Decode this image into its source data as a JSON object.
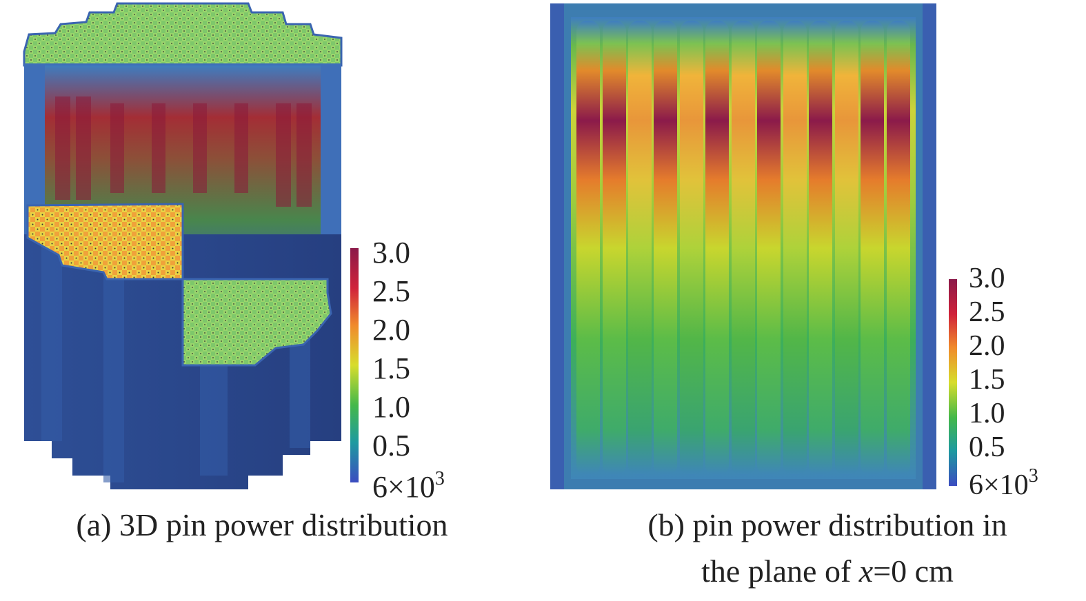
{
  "panels": [
    {
      "id": "a",
      "caption": "(a) 3D pin power distribution"
    },
    {
      "id": "b",
      "caption_line1": "(b) pin power distribution in",
      "caption_line2_prefix": "the plane of ",
      "caption_line2_var": "x",
      "caption_line2_suffix": "=0 cm"
    }
  ],
  "colorbar": {
    "labels": [
      "3.0",
      "2.5",
      "2.0",
      "1.5",
      "1.0",
      "0.5"
    ],
    "min_label_base": "6×10",
    "min_label_exp": "3",
    "colors": [
      "#3b4cc0",
      "#1e9aa0",
      "#44b84a",
      "#d7dd2c",
      "#f08a2c",
      "#d0223a",
      "#8b1a4a"
    ]
  }
}
